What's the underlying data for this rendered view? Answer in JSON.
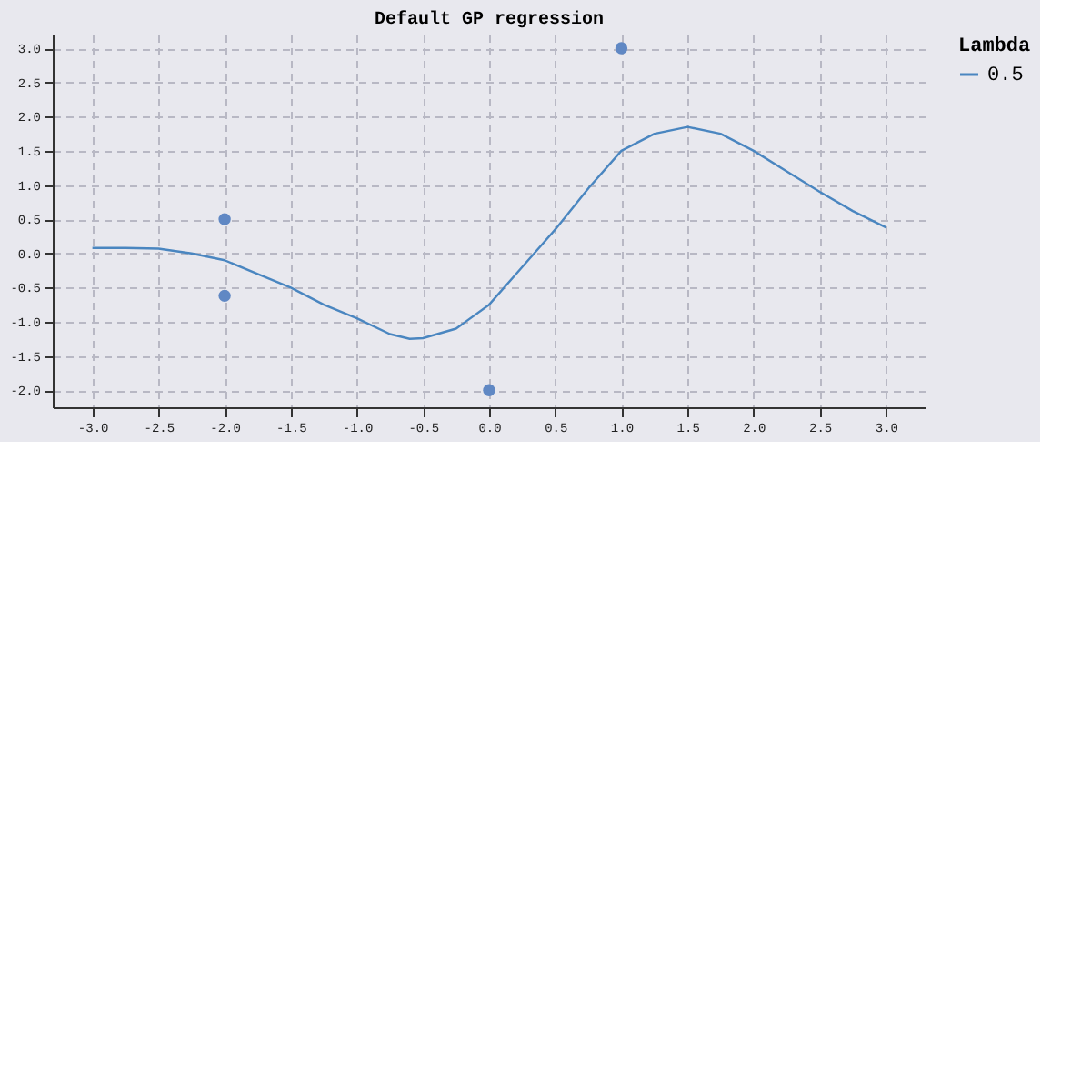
{
  "chart_data": {
    "type": "line",
    "title": "Default GP regression",
    "legend_title": "Lambda",
    "legend": "top right",
    "grid": true,
    "xlim": [
      -3.3,
      3.3
    ],
    "xticks": [
      {
        "value": -3,
        "label": "-3.0"
      },
      {
        "value": -2.5,
        "label": "-2.5"
      },
      {
        "value": -2,
        "label": "-2.0"
      },
      {
        "value": -1.5,
        "label": "-1.5"
      },
      {
        "value": -1,
        "label": "-1.0"
      },
      {
        "value": -0.5,
        "label": "-0.5"
      },
      {
        "value": 0,
        "label": "0.0"
      },
      {
        "value": 0.5,
        "label": "0.5"
      },
      {
        "value": 1,
        "label": "1.0"
      },
      {
        "value": 1.5,
        "label": "1.5"
      },
      {
        "value": 2,
        "label": "2.0"
      },
      {
        "value": 2.5,
        "label": "2.5"
      },
      {
        "value": 3,
        "label": "3.0"
      }
    ],
    "ylim": [
      -2.25,
      3.2
    ],
    "yticks": [
      {
        "value": -2,
        "label": "-2.0"
      },
      {
        "value": -1.5,
        "label": "-1.5"
      },
      {
        "value": -1,
        "label": "-1.0"
      },
      {
        "value": -0.5,
        "label": "-0.5"
      },
      {
        "value": 0,
        "label": "0.0"
      },
      {
        "value": 0.5,
        "label": "0.5"
      },
      {
        "value": 1,
        "label": "1.0"
      },
      {
        "value": 1.5,
        "label": "1.5"
      },
      {
        "value": 2,
        "label": "2.0"
      },
      {
        "value": 2.5,
        "label": "2.5"
      },
      {
        "value": 3,
        "label": "3.0"
      }
    ],
    "series": [
      {
        "name": "0.5",
        "color": "#4a86c0",
        "x": [
          -3,
          -2.75,
          -2.5,
          -2.25,
          -2,
          -1.75,
          -1.5,
          -1.25,
          -1,
          -0.75,
          -0.6,
          -0.5,
          -0.25,
          0,
          0.25,
          0.5,
          0.75,
          1,
          1.25,
          1.5,
          1.75,
          2,
          2.25,
          2.5,
          2.75,
          3
        ],
        "values": [
          0.08,
          0.08,
          0.07,
          0.0,
          -0.1,
          -0.3,
          -0.5,
          -0.75,
          -0.95,
          -1.18,
          -1.25,
          -1.24,
          -1.1,
          -0.75,
          -0.2,
          0.35,
          0.95,
          1.5,
          1.75,
          1.85,
          1.75,
          1.5,
          1.2,
          0.9,
          0.62,
          0.38
        ]
      },
      {
        "type": "scatter",
        "color": "#6088c4",
        "marker": "circle",
        "x": [
          -2,
          -2,
          0,
          1
        ],
        "values": [
          0.5,
          -0.62,
          -2,
          3
        ]
      }
    ]
  }
}
